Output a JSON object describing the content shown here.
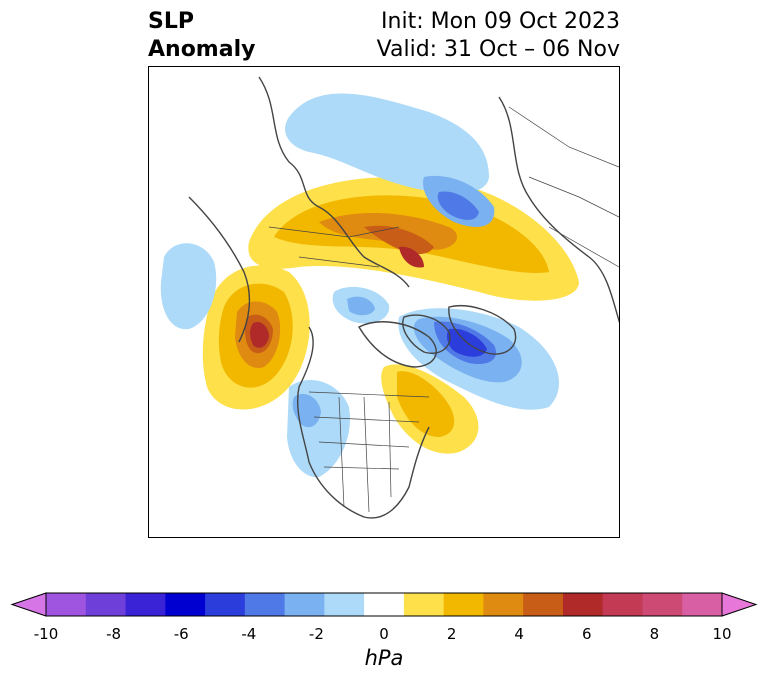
{
  "title": {
    "variable_line1": "SLP",
    "variable_line2": "Anomaly",
    "init_text": "Init: Mon 09 Oct 2023",
    "valid_text": "Valid: 31 Oct – 06 Nov"
  },
  "colorbar": {
    "units": "hPa",
    "tick_labels": [
      "-10",
      "-8",
      "-6",
      "-4",
      "-2",
      "0",
      "2",
      "4",
      "6",
      "8",
      "10"
    ],
    "colors": [
      "#d575e6",
      "#a055e0",
      "#6f3fd9",
      "#3a22d6",
      "#0000d0",
      "#2b3ddb",
      "#4f79e6",
      "#7ab1f0",
      "#acdaf8",
      "#ffffff",
      "#fde04a",
      "#f2b800",
      "#df8a10",
      "#c75d16",
      "#b02a2a",
      "#c33a55",
      "#cd4a75",
      "#d85fa4",
      "#e777d8"
    ]
  },
  "colors": {
    "coastline": "#444444",
    "frame": "#000000"
  }
}
